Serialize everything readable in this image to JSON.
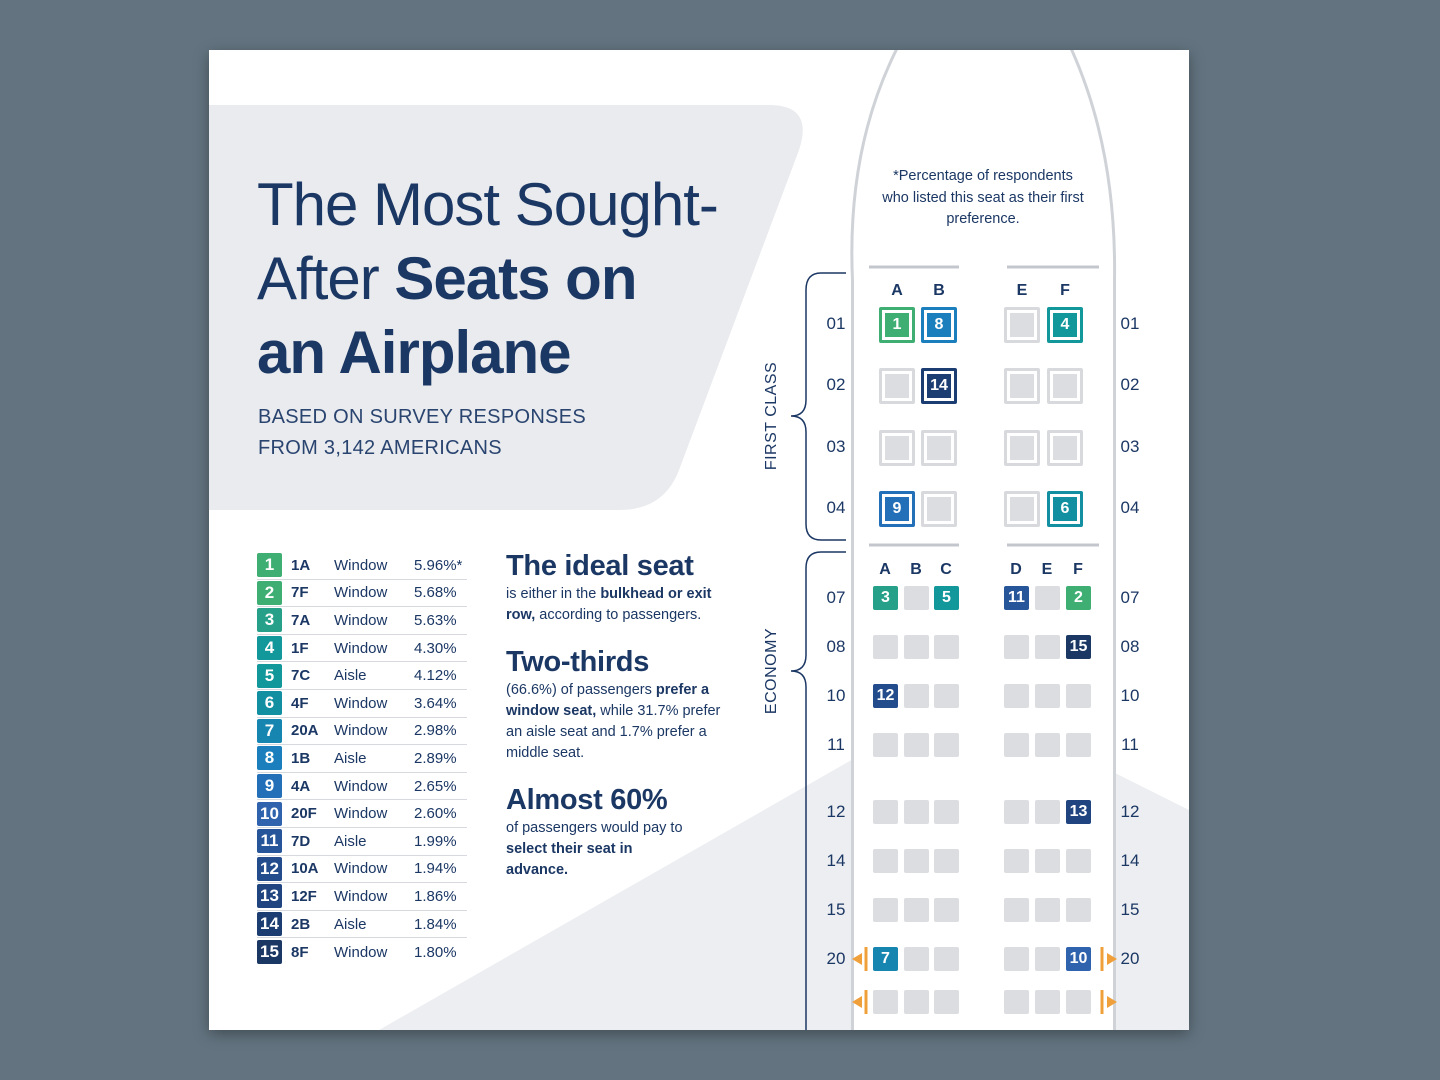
{
  "title": {
    "line1": "The Most Sought-",
    "line2_light": "After ",
    "line2_bold": "Seats on",
    "line3": "an Airplane"
  },
  "subtitle": {
    "line1": "BASED ON SURVEY RESPONSES",
    "line2": "FROM 3,142 AMERICANS"
  },
  "colors": {
    "green": "#3fae73",
    "teal": "#12979a",
    "blue": "#1a7fbc",
    "mid_blue": "#2f63ad",
    "navy": "#1b3764",
    "seat_empty": "#dcdde0",
    "exit_arrow": "#f0a03a"
  },
  "rankings": [
    {
      "rank": "1",
      "seat": "1A",
      "type": "Window",
      "pct": "5.96%*",
      "color": "#3fae73"
    },
    {
      "rank": "2",
      "seat": "7F",
      "type": "Window",
      "pct": "5.68%",
      "color": "#3fae73"
    },
    {
      "rank": "3",
      "seat": "7A",
      "type": "Window",
      "pct": "5.63%",
      "color": "#26a088"
    },
    {
      "rank": "4",
      "seat": "1F",
      "type": "Window",
      "pct": "4.30%",
      "color": "#12979a"
    },
    {
      "rank": "5",
      "seat": "7C",
      "type": "Aisle",
      "pct": "4.12%",
      "color": "#12979a"
    },
    {
      "rank": "6",
      "seat": "4F",
      "type": "Window",
      "pct": "3.64%",
      "color": "#128fa0"
    },
    {
      "rank": "7",
      "seat": "20A",
      "type": "Window",
      "pct": "2.98%",
      "color": "#1686b0"
    },
    {
      "rank": "8",
      "seat": "1B",
      "type": "Aisle",
      "pct": "2.89%",
      "color": "#1a7fbc"
    },
    {
      "rank": "9",
      "seat": "4A",
      "type": "Window",
      "pct": "2.65%",
      "color": "#2470b8"
    },
    {
      "rank": "10",
      "seat": "20F",
      "type": "Window",
      "pct": "2.60%",
      "color": "#2f63ad"
    },
    {
      "rank": "11",
      "seat": "7D",
      "type": "Aisle",
      "pct": "1.99%",
      "color": "#27559a"
    },
    {
      "rank": "12",
      "seat": "10A",
      "type": "Window",
      "pct": "1.94%",
      "color": "#224c8c"
    },
    {
      "rank": "13",
      "seat": "12F",
      "type": "Window",
      "pct": "1.86%",
      "color": "#1f4480"
    },
    {
      "rank": "14",
      "seat": "2B",
      "type": "Aisle",
      "pct": "1.84%",
      "color": "#1c3d72"
    },
    {
      "rank": "15",
      "seat": "8F",
      "type": "Window",
      "pct": "1.80%",
      "color": "#1b3764"
    }
  ],
  "facts": {
    "f1_head": "The ideal seat",
    "f1_a": "is either in the ",
    "f1_b": "bulkhead or exit row,",
    "f1_c": " according to passengers.",
    "f2_head": "Two-thirds",
    "f2_a": "(66.6%) of passengers ",
    "f2_b": "prefer a window seat,",
    "f2_c": " while 31.7% prefer an aisle seat and 1.7% prefer a middle seat.",
    "f3_head": "Almost 60%",
    "f3_a": "of passengers would pay to ",
    "f3_b": "select their seat in advance."
  },
  "note": "*Percentage of respondents who listed this seat as their first preference.",
  "sections": {
    "first": "FIRST CLASS",
    "economy": "ECONOMY"
  },
  "first_class": {
    "columns": [
      "A",
      "B",
      "E",
      "F"
    ],
    "rows": [
      {
        "row": "01",
        "seats": [
          {
            "label": "1",
            "color": "#3fae73"
          },
          {
            "label": "8",
            "color": "#1a7fbc"
          },
          {
            "label": "",
            "color": ""
          },
          {
            "label": "4",
            "color": "#12979a"
          }
        ]
      },
      {
        "row": "02",
        "seats": [
          {
            "label": "",
            "color": ""
          },
          {
            "label": "14",
            "color": "#1c3d72"
          },
          {
            "label": "",
            "color": ""
          },
          {
            "label": "",
            "color": ""
          }
        ]
      },
      {
        "row": "03",
        "seats": [
          {
            "label": "",
            "color": ""
          },
          {
            "label": "",
            "color": ""
          },
          {
            "label": "",
            "color": ""
          },
          {
            "label": "",
            "color": ""
          }
        ]
      },
      {
        "row": "04",
        "seats": [
          {
            "label": "9",
            "color": "#2470b8"
          },
          {
            "label": "",
            "color": ""
          },
          {
            "label": "",
            "color": ""
          },
          {
            "label": "6",
            "color": "#128fa0"
          }
        ]
      }
    ]
  },
  "economy": {
    "columns": [
      "A",
      "B",
      "C",
      "D",
      "E",
      "F"
    ],
    "rows": [
      {
        "row": "07",
        "seats": [
          {
            "label": "3",
            "color": "#26a088"
          },
          {
            "label": "",
            "color": ""
          },
          {
            "label": "5",
            "color": "#12979a"
          },
          {
            "label": "11",
            "color": "#27559a"
          },
          {
            "label": "",
            "color": ""
          },
          {
            "label": "2",
            "color": "#3fae73"
          }
        ]
      },
      {
        "row": "08",
        "seats": [
          {
            "label": "",
            "color": ""
          },
          {
            "label": "",
            "color": ""
          },
          {
            "label": "",
            "color": ""
          },
          {
            "label": "",
            "color": ""
          },
          {
            "label": "",
            "color": ""
          },
          {
            "label": "15",
            "color": "#1b3764"
          }
        ]
      },
      {
        "row": "10",
        "seats": [
          {
            "label": "12",
            "color": "#224c8c"
          },
          {
            "label": "",
            "color": ""
          },
          {
            "label": "",
            "color": ""
          },
          {
            "label": "",
            "color": ""
          },
          {
            "label": "",
            "color": ""
          },
          {
            "label": "",
            "color": ""
          }
        ]
      },
      {
        "row": "11",
        "seats": [
          {
            "label": "",
            "color": ""
          },
          {
            "label": "",
            "color": ""
          },
          {
            "label": "",
            "color": ""
          },
          {
            "label": "",
            "color": ""
          },
          {
            "label": "",
            "color": ""
          },
          {
            "label": "",
            "color": ""
          }
        ]
      },
      {
        "row": "12",
        "seats": [
          {
            "label": "",
            "color": ""
          },
          {
            "label": "",
            "color": ""
          },
          {
            "label": "",
            "color": ""
          },
          {
            "label": "",
            "color": ""
          },
          {
            "label": "",
            "color": ""
          },
          {
            "label": "13",
            "color": "#1f4480"
          }
        ]
      },
      {
        "row": "14",
        "seats": [
          {
            "label": "",
            "color": ""
          },
          {
            "label": "",
            "color": ""
          },
          {
            "label": "",
            "color": ""
          },
          {
            "label": "",
            "color": ""
          },
          {
            "label": "",
            "color": ""
          },
          {
            "label": "",
            "color": ""
          }
        ]
      },
      {
        "row": "15",
        "seats": [
          {
            "label": "",
            "color": ""
          },
          {
            "label": "",
            "color": ""
          },
          {
            "label": "",
            "color": ""
          },
          {
            "label": "",
            "color": ""
          },
          {
            "label": "",
            "color": ""
          },
          {
            "label": "",
            "color": ""
          }
        ]
      },
      {
        "row": "20",
        "seats": [
          {
            "label": "7",
            "color": "#1686b0"
          },
          {
            "label": "",
            "color": ""
          },
          {
            "label": "",
            "color": ""
          },
          {
            "label": "",
            "color": ""
          },
          {
            "label": "",
            "color": ""
          },
          {
            "label": "10",
            "color": "#2f63ad"
          }
        ]
      },
      {
        "row": "",
        "seats": [
          {
            "label": "",
            "color": ""
          },
          {
            "label": "",
            "color": ""
          },
          {
            "label": "",
            "color": ""
          },
          {
            "label": "",
            "color": ""
          },
          {
            "label": "",
            "color": ""
          },
          {
            "label": "",
            "color": ""
          }
        ]
      }
    ]
  }
}
